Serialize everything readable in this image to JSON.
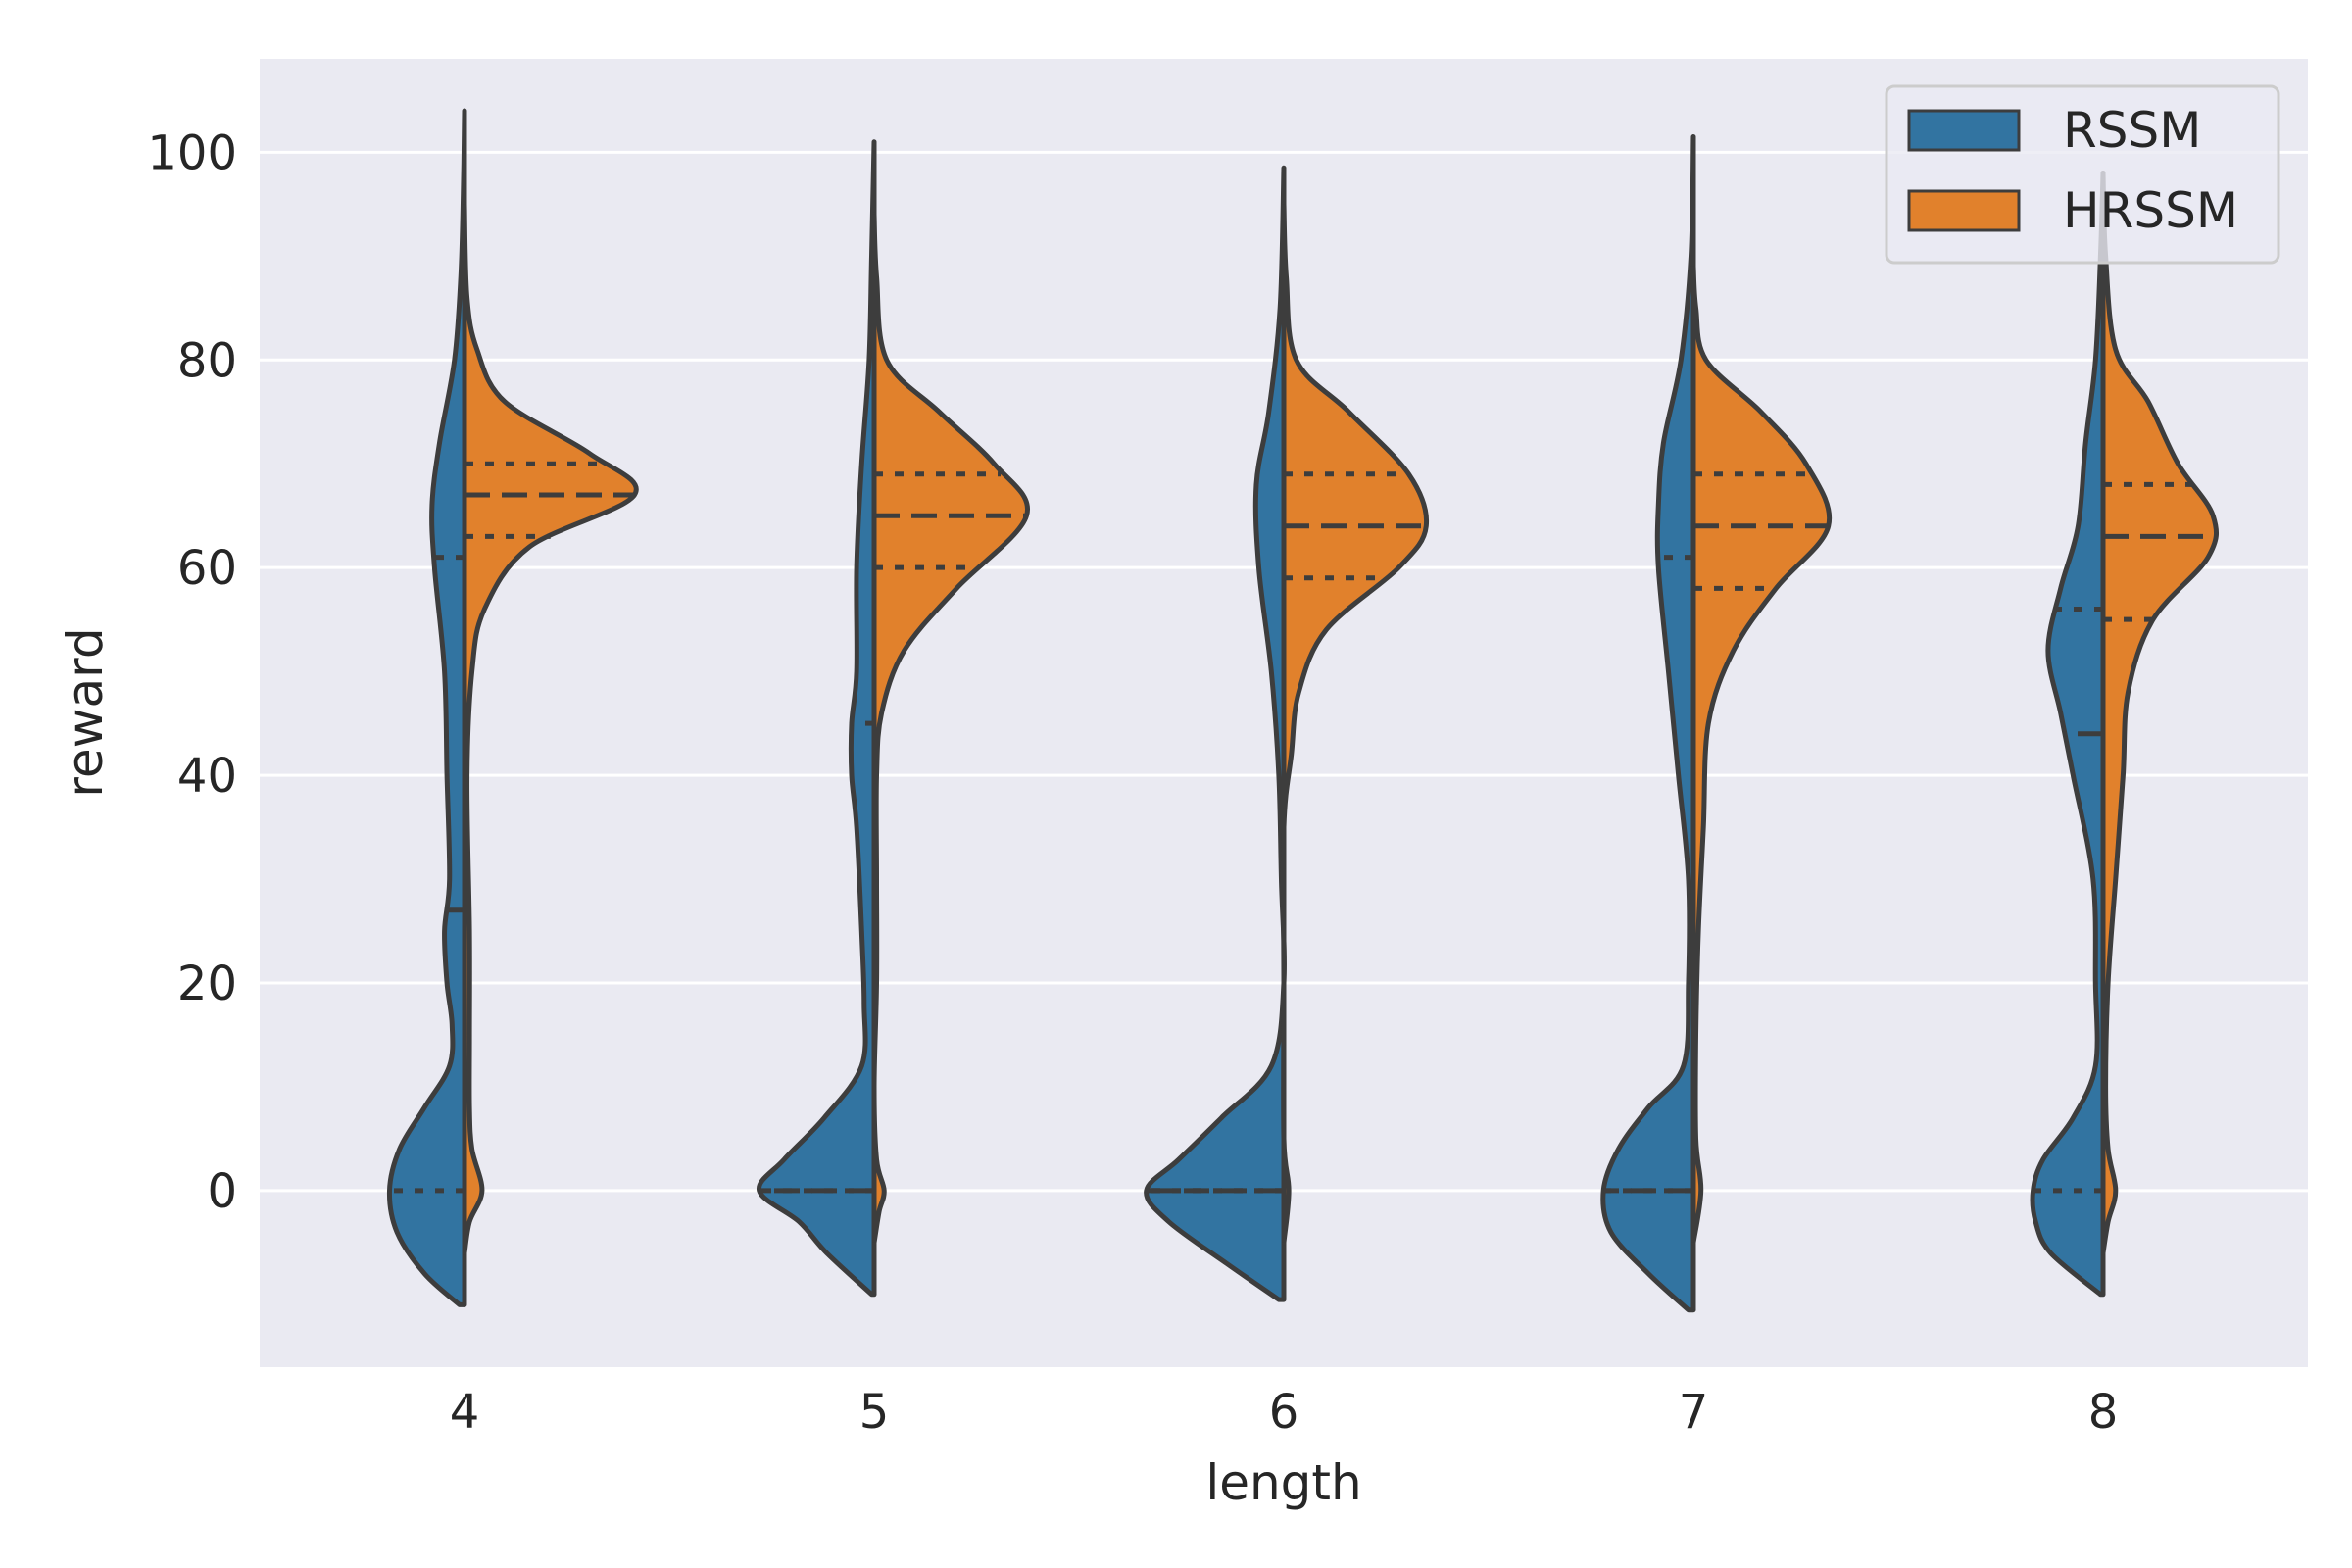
{
  "chart_data": {
    "type": "violin",
    "split": true,
    "inner": "quartile",
    "xlabel": "length",
    "ylabel": "reward",
    "categories": [
      "4",
      "5",
      "6",
      "7",
      "8"
    ],
    "ylim": [
      -17,
      109
    ],
    "yticks": [
      0,
      20,
      40,
      60,
      80,
      100
    ],
    "grid": true,
    "legend_position": "top-right",
    "series": [
      {
        "name": "RSSM",
        "color": "#3274a1",
        "groups": [
          {
            "category": "4",
            "min": -11,
            "max": 104,
            "q1": 0,
            "median": 27,
            "q3": 61,
            "profile": [
              [
                -11,
                0.02
              ],
              [
                -8,
                0.16
              ],
              [
                -4,
                0.27
              ],
              [
                0,
                0.3
              ],
              [
                4,
                0.26
              ],
              [
                8,
                0.16
              ],
              [
                12,
                0.06
              ],
              [
                16,
                0.05
              ],
              [
                20,
                0.07
              ],
              [
                25,
                0.08
              ],
              [
                30,
                0.06
              ],
              [
                40,
                0.07
              ],
              [
                50,
                0.08
              ],
              [
                60,
                0.12
              ],
              [
                66,
                0.13
              ],
              [
                72,
                0.1
              ],
              [
                80,
                0.04
              ],
              [
                88,
                0.015
              ],
              [
                96,
                0.005
              ],
              [
                104,
                0.0
              ]
            ]
          },
          {
            "category": "5",
            "min": -10,
            "max": 101,
            "q1": 0,
            "median": 0,
            "q3": 45,
            "profile": [
              [
                -10,
                0.01
              ],
              [
                -6,
                0.19
              ],
              [
                -3,
                0.3
              ],
              [
                0,
                0.46
              ],
              [
                3,
                0.36
              ],
              [
                7,
                0.2
              ],
              [
                12,
                0.05
              ],
              [
                18,
                0.04
              ],
              [
                25,
                0.05
              ],
              [
                35,
                0.07
              ],
              [
                40,
                0.09
              ],
              [
                45,
                0.09
              ],
              [
                50,
                0.07
              ],
              [
                60,
                0.07
              ],
              [
                70,
                0.05
              ],
              [
                80,
                0.02
              ],
              [
                90,
                0.01
              ],
              [
                101,
                0.0
              ]
            ]
          },
          {
            "category": "6",
            "min": -10.5,
            "max": 98.5,
            "q1": 0,
            "median": 0,
            "q3": 0,
            "profile": [
              [
                -10.5,
                0.02
              ],
              [
                -7,
                0.23
              ],
              [
                -3,
                0.46
              ],
              [
                0,
                0.55
              ],
              [
                3,
                0.42
              ],
              [
                7,
                0.25
              ],
              [
                12,
                0.05
              ],
              [
                20,
                0.0
              ],
              [
                30,
                0.01
              ],
              [
                40,
                0.02
              ],
              [
                50,
                0.05
              ],
              [
                60,
                0.1
              ],
              [
                68,
                0.11
              ],
              [
                75,
                0.06
              ],
              [
                85,
                0.015
              ],
              [
                98.5,
                0.0
              ]
            ]
          },
          {
            "category": "7",
            "min": -11.5,
            "max": 101.5,
            "q1": 0,
            "median": 0,
            "q3": 61,
            "profile": [
              [
                -11.5,
                0.02
              ],
              [
                -8,
                0.18
              ],
              [
                -4,
                0.33
              ],
              [
                0,
                0.36
              ],
              [
                4,
                0.3
              ],
              [
                8,
                0.18
              ],
              [
                12,
                0.04
              ],
              [
                20,
                0.02
              ],
              [
                30,
                0.02
              ],
              [
                40,
                0.06
              ],
              [
                50,
                0.1
              ],
              [
                60,
                0.14
              ],
              [
                66,
                0.14
              ],
              [
                72,
                0.12
              ],
              [
                80,
                0.05
              ],
              [
                90,
                0.01
              ],
              [
                101.5,
                0.0
              ]
            ]
          },
          {
            "category": "8",
            "min": -10,
            "max": 98,
            "q1": 0,
            "median": 44,
            "q3": 56,
            "profile": [
              [
                -10,
                0.01
              ],
              [
                -6,
                0.21
              ],
              [
                -3,
                0.27
              ],
              [
                0,
                0.28
              ],
              [
                3,
                0.24
              ],
              [
                7,
                0.12
              ],
              [
                12,
                0.03
              ],
              [
                20,
                0.03
              ],
              [
                30,
                0.04
              ],
              [
                40,
                0.12
              ],
              [
                46,
                0.17
              ],
              [
                52,
                0.22
              ],
              [
                58,
                0.17
              ],
              [
                64,
                0.1
              ],
              [
                72,
                0.07
              ],
              [
                80,
                0.03
              ],
              [
                90,
                0.01
              ],
              [
                98,
                0.0
              ]
            ]
          }
        ]
      },
      {
        "name": "HRSSM",
        "color": "#e1812c",
        "groups": [
          {
            "category": "4",
            "min": -6,
            "max": 95,
            "q1": 63,
            "median": 67,
            "q3": 70,
            "profile": [
              [
                -6,
                0.0
              ],
              [
                -3,
                0.02
              ],
              [
                0,
                0.07
              ],
              [
                4,
                0.03
              ],
              [
                8,
                0.02
              ],
              [
                15,
                0.02
              ],
              [
                25,
                0.02
              ],
              [
                40,
                0.01
              ],
              [
                50,
                0.03
              ],
              [
                56,
                0.08
              ],
              [
                62,
                0.26
              ],
              [
                67,
                0.68
              ],
              [
                71,
                0.5
              ],
              [
                76,
                0.16
              ],
              [
                81,
                0.05
              ],
              [
                86,
                0.01
              ],
              [
                95,
                0.0
              ]
            ]
          },
          {
            "category": "5",
            "min": -5,
            "max": 94,
            "q1": 60,
            "median": 65,
            "q3": 69,
            "profile": [
              [
                -5,
                0.0
              ],
              [
                -2,
                0.02
              ],
              [
                0,
                0.04
              ],
              [
                3,
                0.01
              ],
              [
                10,
                0.0
              ],
              [
                20,
                0.01
              ],
              [
                30,
                0.01
              ],
              [
                40,
                0.01
              ],
              [
                46,
                0.03
              ],
              [
                52,
                0.12
              ],
              [
                58,
                0.33
              ],
              [
                65,
                0.61
              ],
              [
                70,
                0.48
              ],
              [
                75,
                0.26
              ],
              [
                80,
                0.05
              ],
              [
                88,
                0.01
              ],
              [
                94,
                0.0
              ]
            ]
          },
          {
            "category": "6",
            "min": -5,
            "max": 95,
            "q1": 59,
            "median": 64,
            "q3": 69,
            "profile": [
              [
                -5,
                0.0
              ],
              [
                0,
                0.02
              ],
              [
                5,
                0.0
              ],
              [
                20,
                0.0
              ],
              [
                35,
                0.0
              ],
              [
                42,
                0.03
              ],
              [
                48,
                0.06
              ],
              [
                54,
                0.17
              ],
              [
                60,
                0.46
              ],
              [
                64,
                0.57
              ],
              [
                69,
                0.5
              ],
              [
                75,
                0.26
              ],
              [
                80,
                0.05
              ],
              [
                88,
                0.01
              ],
              [
                95,
                0.0
              ]
            ]
          },
          {
            "category": "7",
            "min": -5,
            "max": 89,
            "q1": 58,
            "median": 64,
            "q3": 69,
            "profile": [
              [
                -5,
                0.0
              ],
              [
                0,
                0.03
              ],
              [
                5,
                0.01
              ],
              [
                15,
                0.01
              ],
              [
                25,
                0.02
              ],
              [
                35,
                0.04
              ],
              [
                45,
                0.06
              ],
              [
                52,
                0.16
              ],
              [
                58,
                0.33
              ],
              [
                64,
                0.54
              ],
              [
                70,
                0.45
              ],
              [
                75,
                0.27
              ],
              [
                80,
                0.05
              ],
              [
                85,
                0.01
              ],
              [
                89,
                0.0
              ]
            ]
          },
          {
            "category": "8",
            "min": -6,
            "max": 98,
            "q1": 55,
            "median": 63,
            "q3": 68,
            "profile": [
              [
                -6,
                0.0
              ],
              [
                -3,
                0.02
              ],
              [
                0,
                0.05
              ],
              [
                4,
                0.02
              ],
              [
                10,
                0.01
              ],
              [
                20,
                0.02
              ],
              [
                30,
                0.05
              ],
              [
                40,
                0.08
              ],
              [
                48,
                0.1
              ],
              [
                55,
                0.2
              ],
              [
                61,
                0.42
              ],
              [
                65,
                0.44
              ],
              [
                70,
                0.3
              ],
              [
                76,
                0.18
              ],
              [
                81,
                0.05
              ],
              [
                90,
                0.01
              ],
              [
                98,
                0.0
              ]
            ]
          }
        ]
      }
    ]
  }
}
